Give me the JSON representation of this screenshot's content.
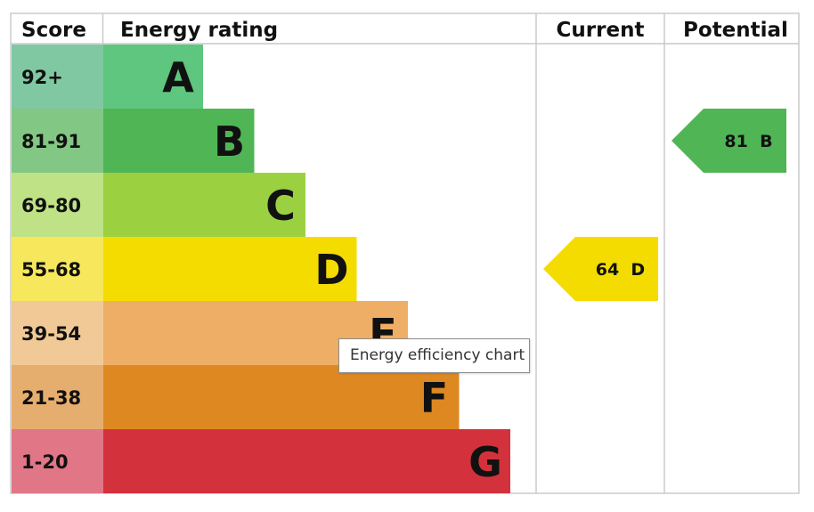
{
  "chart_data": {
    "type": "bar",
    "headers": {
      "score": "Score",
      "rating": "Energy rating",
      "current": "Current",
      "potential": "Potential"
    },
    "bands": [
      {
        "score": "92+",
        "letter": "A",
        "min": 92,
        "color": "#5ec67e",
        "score_bg": "#80c8a2"
      },
      {
        "score": "81-91",
        "letter": "B",
        "min": 81,
        "color": "#50b555",
        "score_bg": "#82c783"
      },
      {
        "score": "69-80",
        "letter": "C",
        "min": 69,
        "color": "#9bd141",
        "score_bg": "#bfe286"
      },
      {
        "score": "55-68",
        "letter": "D",
        "min": 55,
        "color": "#f4dc00",
        "score_bg": "#f6e75d"
      },
      {
        "score": "39-54",
        "letter": "E",
        "min": 39,
        "color": "#eeae65",
        "score_bg": "#f1c996"
      },
      {
        "score": "21-38",
        "letter": "F",
        "min": 21,
        "color": "#de8822",
        "score_bg": "#e6ae6e"
      },
      {
        "score": "1-20",
        "letter": "G",
        "min": 1,
        "color": "#d3323d",
        "score_bg": "#e07686"
      }
    ],
    "current": {
      "value": 64,
      "letter": "D",
      "label": "64  D",
      "color": "#f4dc00"
    },
    "potential": {
      "value": 81,
      "letter": "B",
      "label": "81  B",
      "color": "#50b555"
    }
  },
  "tooltip": {
    "text": "Energy efficiency chart"
  }
}
